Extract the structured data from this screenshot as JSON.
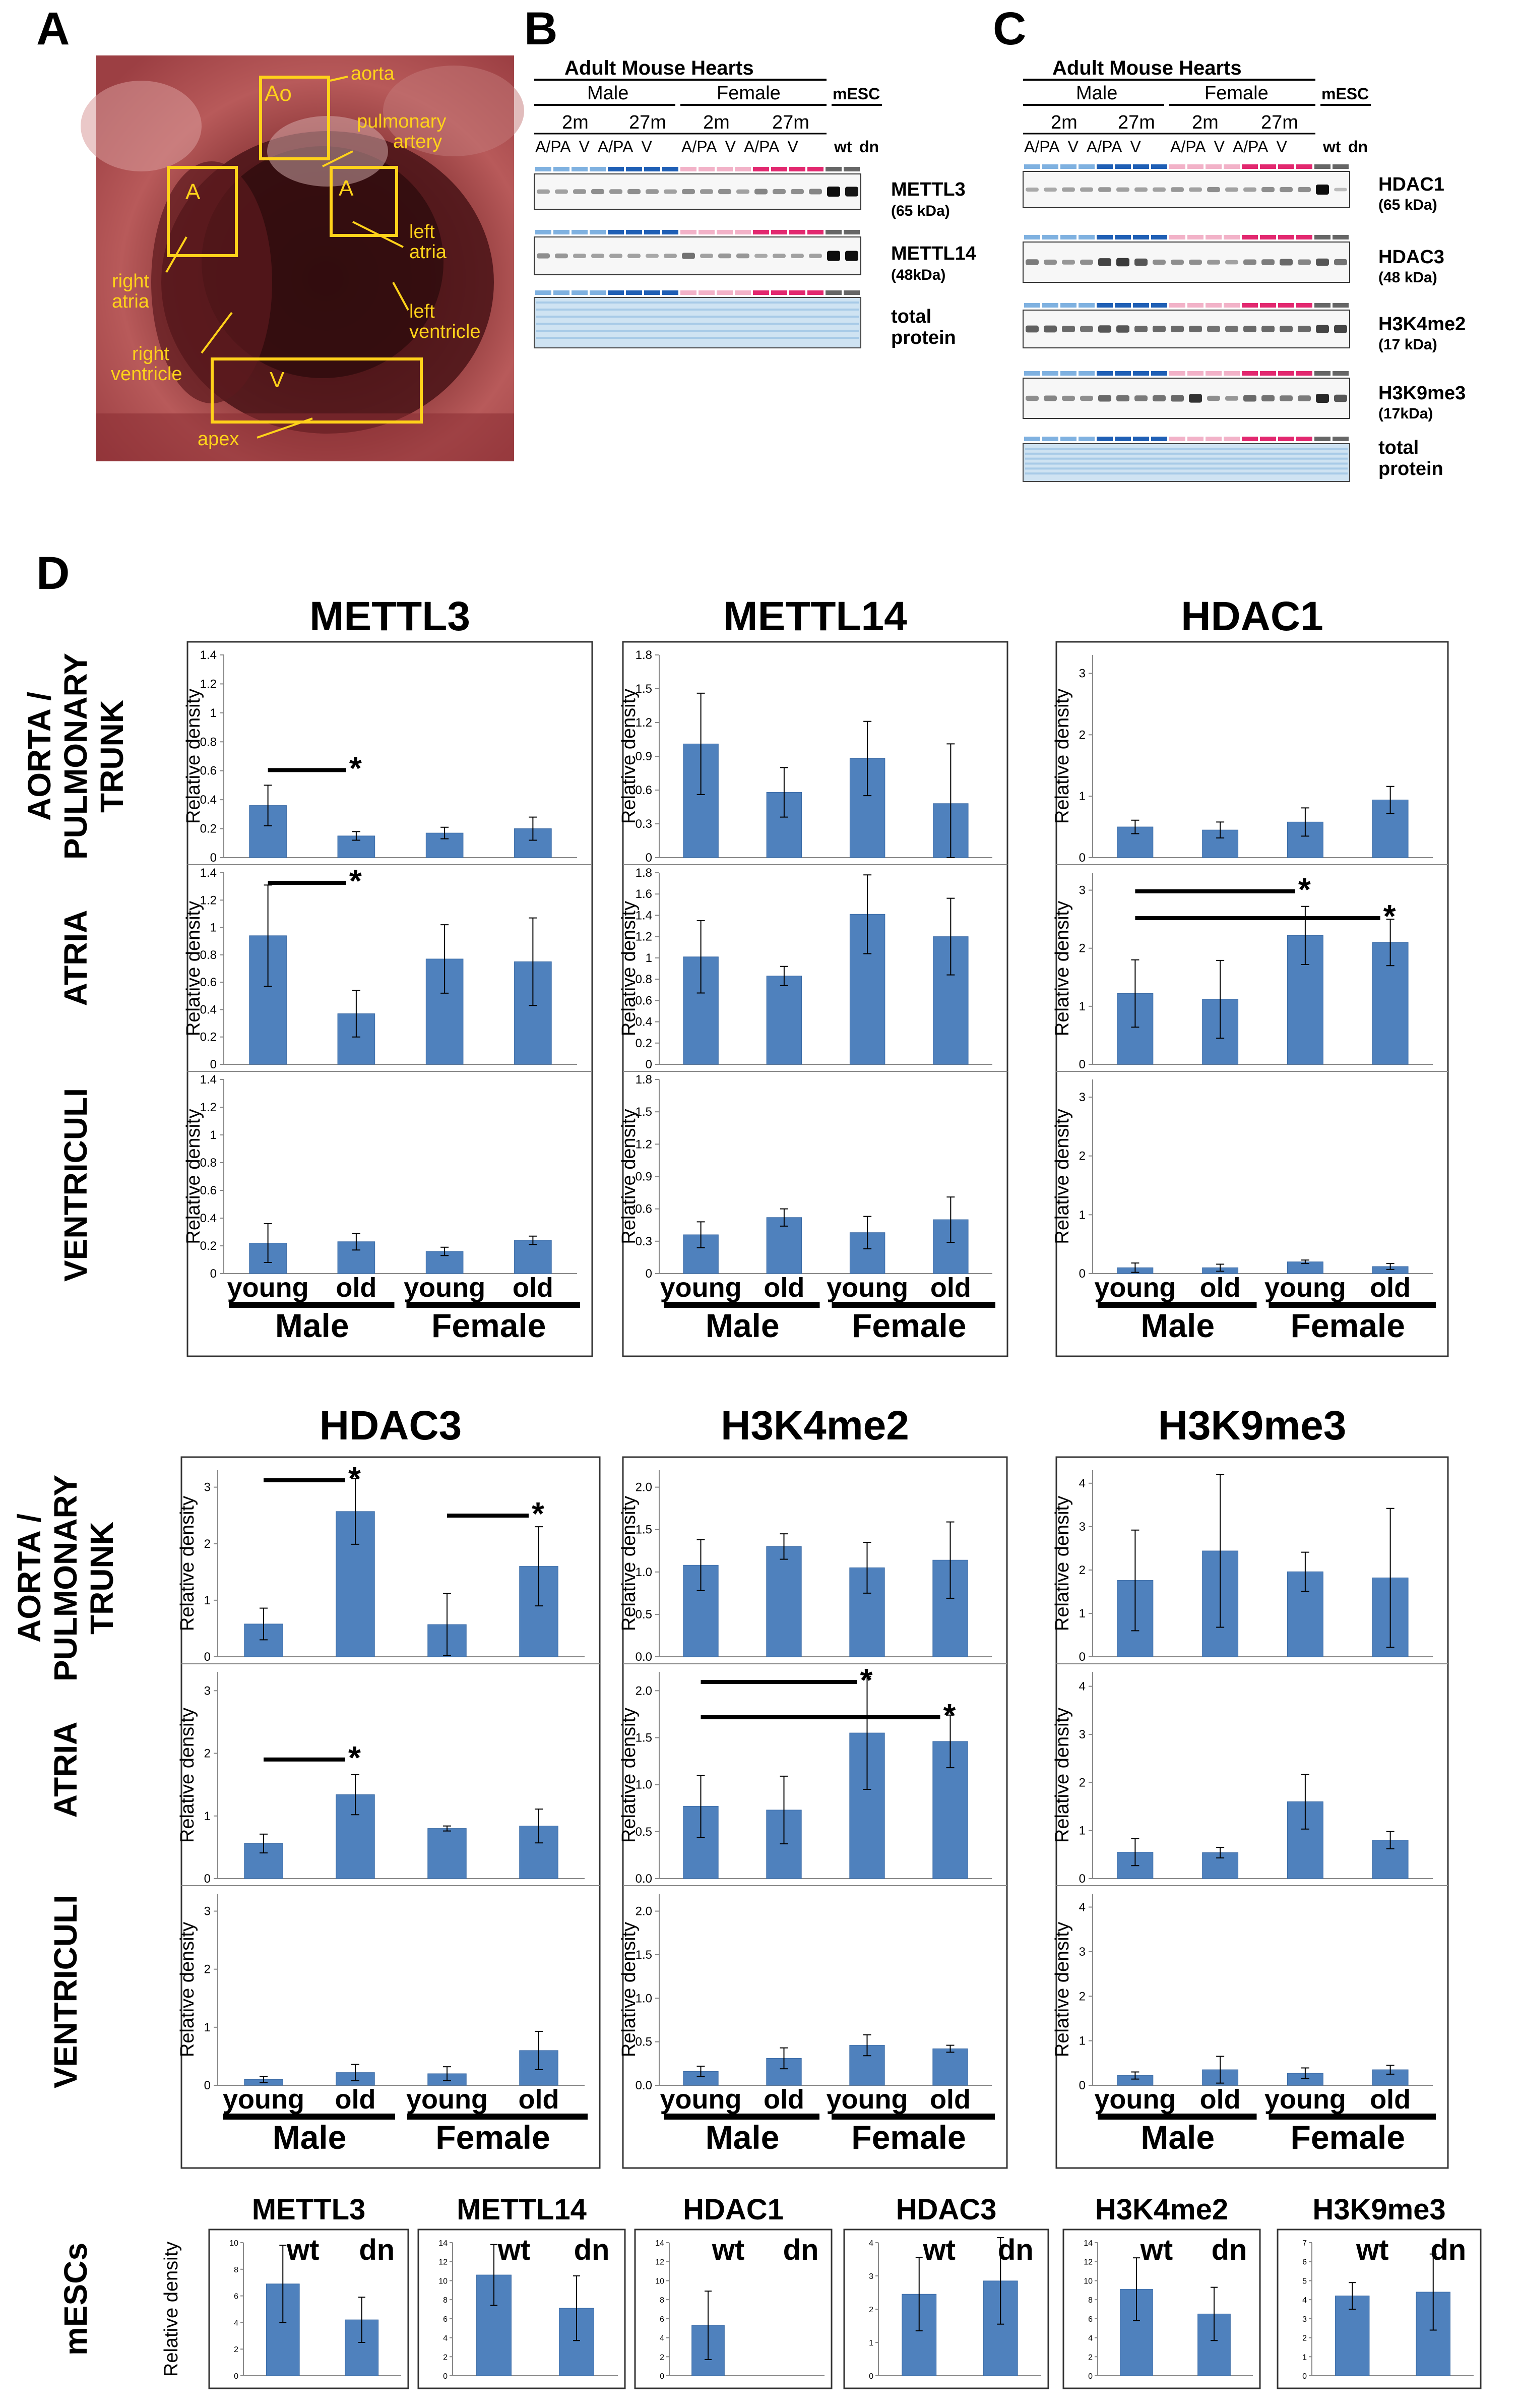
{
  "panel_labels": {
    "a": "A",
    "b": "B",
    "c": "C",
    "d": "D"
  },
  "photo": {
    "labels": {
      "ao_box": "Ao",
      "a_left_box": "A",
      "a_right_box": "A",
      "v_box": "V",
      "aorta": "aorta",
      "pulmonary_1": "pulmonary",
      "pulmonary_2": "artery",
      "right_atria_1": "right",
      "right_atria_2": "atria",
      "left_atria_1": "left",
      "left_atria_2": "atria",
      "left_ventricle_1": "left",
      "left_ventricle_2": "ventricle",
      "right_ventricle_1": "right",
      "right_ventricle_2": "ventricle",
      "apex": "apex"
    }
  },
  "blot_b": {
    "title": "Adult Mouse Hearts",
    "male": "Male",
    "female": "Female",
    "mesc": "mESC",
    "ages": [
      "2m",
      "27m",
      "2m",
      "27m"
    ],
    "lanes_male": "A/PA  V  A/PA  V",
    "lanes_female": "A/PA  V  A/PA  V",
    "wt": "wt",
    "dn": "dn",
    "bands": [
      {
        "name": "METTL3",
        "kda": "(65 kDa)"
      },
      {
        "name": "METTL14",
        "kda": "(48kDa)"
      },
      {
        "name": "total",
        "kda": "protein"
      }
    ]
  },
  "blot_c": {
    "title": "Adult Mouse Hearts",
    "male": "Male",
    "female": "Female",
    "mesc": "mESC",
    "ages": [
      "2m",
      "27m",
      "2m",
      "27m"
    ],
    "lanes_male": "A/PA  V  A/PA  V",
    "lanes_female": "A/PA  V  A/PA  V",
    "wt": "wt",
    "dn": "dn",
    "bands": [
      {
        "name": "HDAC1",
        "kda": "(65 kDa)"
      },
      {
        "name": "HDAC3",
        "kda": "(48 kDa)"
      },
      {
        "name": "H3K4me2",
        "kda": "(17 kDa)"
      },
      {
        "name": "H3K9me3",
        "kda": "(17kDa)"
      },
      {
        "name": "total",
        "kda": "protein"
      }
    ]
  },
  "row_labels": {
    "aorta_1": "AORTA /",
    "aorta_2": "PULMONARY",
    "aorta_3": "TRUNK",
    "atria": "ATRIA",
    "ventriculi": "VENTRICULI",
    "mescs": "mESCs"
  },
  "common": {
    "ylabel": "Relative density",
    "young": "young",
    "old": "old",
    "male": "Male",
    "female": "Female",
    "star": "*",
    "wt": "wt",
    "dn": "dn"
  },
  "colors": {
    "bar": "#4f81bd",
    "bar_edge": "#3a6aa5",
    "photo_box": "#ffd21a"
  },
  "chart_data": [
    {
      "type": "bar",
      "title": "METTL3",
      "categories": [
        "young Male",
        "old Male",
        "young Female",
        "old Female"
      ],
      "panels": [
        {
          "region": "AORTA / PULMONARY TRUNK",
          "ylim": [
            0,
            1.4
          ],
          "yticks": [
            0,
            0.2,
            0.4,
            0.6,
            0.8,
            1,
            1.2,
            1.4
          ],
          "ytick_labels": [
            "0",
            "0.2",
            "0.4",
            "0.6",
            "0.8",
            "1",
            "1.2",
            "1.4"
          ],
          "values": [
            0.36,
            0.15,
            0.17,
            0.2
          ],
          "errors": [
            0.14,
            0.03,
            0.04,
            0.08
          ],
          "significance": [
            [
              0,
              1
            ]
          ]
        },
        {
          "region": "ATRIA",
          "ylim": [
            0,
            1.4
          ],
          "yticks": [
            0,
            0.2,
            0.4,
            0.6,
            0.8,
            1,
            1.2,
            1.4
          ],
          "ytick_labels": [
            "0",
            "0.2",
            "0.4",
            "0.6",
            "0.8",
            "1",
            "1.2",
            "1.4"
          ],
          "values": [
            0.94,
            0.37,
            0.77,
            0.75
          ],
          "errors": [
            0.37,
            0.17,
            0.25,
            0.32
          ],
          "significance": [
            [
              0,
              1
            ]
          ]
        },
        {
          "region": "VENTRICULI",
          "ylim": [
            0,
            1.4
          ],
          "yticks": [
            0,
            0.2,
            0.4,
            0.6,
            0.8,
            1,
            1.2,
            1.4
          ],
          "ytick_labels": [
            "0",
            "0.2",
            "0.4",
            "0.6",
            "0.8",
            "1",
            "1.2",
            "1.4"
          ],
          "values": [
            0.22,
            0.23,
            0.16,
            0.24
          ],
          "errors": [
            0.14,
            0.06,
            0.03,
            0.03
          ],
          "significance": []
        }
      ]
    },
    {
      "type": "bar",
      "title": "METTL14",
      "categories": [
        "young Male",
        "old Male",
        "young Female",
        "old Female"
      ],
      "panels": [
        {
          "region": "AORTA / PULMONARY TRUNK",
          "ylim": [
            0,
            1.8
          ],
          "yticks": [
            0,
            0.3,
            0.6,
            0.9,
            1.2,
            1.5,
            1.8
          ],
          "ytick_labels": [
            "0",
            "0.3",
            "0.6",
            "0.9",
            "1.2",
            "1.5",
            "1.8"
          ],
          "values": [
            1.01,
            0.58,
            0.88,
            0.48
          ],
          "errors": [
            0.45,
            0.22,
            0.33,
            0.53
          ],
          "significance": []
        },
        {
          "region": "ATRIA",
          "ylim": [
            0,
            1.8
          ],
          "yticks": [
            0,
            0.2,
            0.4,
            0.6,
            0.8,
            1,
            1.2,
            1.4,
            1.6,
            1.8
          ],
          "ytick_labels": [
            "0",
            "0.2",
            "0.4",
            "0.6",
            "0.8",
            "1",
            "1.2",
            "1.4",
            "1.6",
            "1.8"
          ],
          "values": [
            1.01,
            0.83,
            1.41,
            1.2
          ],
          "errors": [
            0.34,
            0.09,
            0.37,
            0.36
          ],
          "significance": []
        },
        {
          "region": "VENTRICULI",
          "ylim": [
            0,
            1.8
          ],
          "yticks": [
            0,
            0.3,
            0.6,
            0.9,
            1.2,
            1.5,
            1.8
          ],
          "ytick_labels": [
            "0",
            "0.3",
            "0.6",
            "0.9",
            "1.2",
            "1.5",
            "1.8"
          ],
          "values": [
            0.36,
            0.52,
            0.38,
            0.5
          ],
          "errors": [
            0.12,
            0.08,
            0.15,
            0.21
          ],
          "significance": []
        }
      ]
    },
    {
      "type": "bar",
      "title": "HDAC1",
      "categories": [
        "young Male",
        "old Male",
        "young Female",
        "old Female"
      ],
      "panels": [
        {
          "region": "AORTA / PULMONARY TRUNK",
          "ylim": [
            0,
            3.3
          ],
          "yticks": [
            0,
            1,
            2,
            3
          ],
          "ytick_labels": [
            "0",
            "1",
            "2",
            "3"
          ],
          "values": [
            0.5,
            0.45,
            0.58,
            0.94
          ],
          "errors": [
            0.11,
            0.13,
            0.23,
            0.22
          ],
          "significance": []
        },
        {
          "region": "ATRIA",
          "ylim": [
            0,
            3.3
          ],
          "yticks": [
            0,
            1,
            2,
            3
          ],
          "ytick_labels": [
            "0",
            "1",
            "2",
            "3"
          ],
          "values": [
            1.22,
            1.12,
            2.22,
            2.1
          ],
          "errors": [
            0.58,
            0.67,
            0.5,
            0.4
          ],
          "significance": [
            [
              0,
              2
            ],
            [
              0,
              3
            ]
          ]
        },
        {
          "region": "VENTRICULI",
          "ylim": [
            0,
            3.3
          ],
          "yticks": [
            0,
            1,
            2,
            3
          ],
          "ytick_labels": [
            "0",
            "1",
            "2",
            "3"
          ],
          "values": [
            0.1,
            0.1,
            0.2,
            0.12
          ],
          "errors": [
            0.08,
            0.06,
            0.03,
            0.05
          ],
          "significance": []
        }
      ]
    },
    {
      "type": "bar",
      "title": "HDAC3",
      "categories": [
        "young Male",
        "old Male",
        "young Female",
        "old Female"
      ],
      "panels": [
        {
          "region": "AORTA / PULMONARY TRUNK",
          "ylim": [
            0,
            3.3
          ],
          "yticks": [
            0,
            1,
            2,
            3
          ],
          "ytick_labels": [
            "0",
            "1",
            "2",
            "3"
          ],
          "values": [
            0.58,
            2.57,
            0.57,
            1.6
          ],
          "errors": [
            0.28,
            0.58,
            0.55,
            0.7
          ],
          "significance": [
            [
              0,
              1
            ],
            [
              2,
              3
            ]
          ]
        },
        {
          "region": "ATRIA",
          "ylim": [
            0,
            3.3
          ],
          "yticks": [
            0,
            1,
            2,
            3
          ],
          "ytick_labels": [
            "0",
            "1",
            "2",
            "3"
          ],
          "values": [
            0.56,
            1.34,
            0.8,
            0.84
          ],
          "errors": [
            0.15,
            0.32,
            0.04,
            0.27
          ],
          "significance": [
            [
              0,
              1
            ]
          ]
        },
        {
          "region": "VENTRICULI",
          "ylim": [
            0,
            3.3
          ],
          "yticks": [
            0,
            1,
            2,
            3
          ],
          "ytick_labels": [
            "0",
            "1",
            "2",
            "3"
          ],
          "values": [
            0.1,
            0.22,
            0.2,
            0.6
          ],
          "errors": [
            0.05,
            0.14,
            0.12,
            0.33
          ],
          "significance": []
        }
      ]
    },
    {
      "type": "bar",
      "title": "H3K4me2",
      "categories": [
        "young Male",
        "old Male",
        "young Female",
        "old Female"
      ],
      "panels": [
        {
          "region": "AORTA / PULMONARY TRUNK",
          "ylim": [
            0,
            2.2
          ],
          "yticks": [
            0,
            0.5,
            1,
            1.5,
            2
          ],
          "ytick_labels": [
            "0.0",
            "0.5",
            "1.0",
            "1.5",
            "2.0"
          ],
          "values": [
            1.08,
            1.3,
            1.05,
            1.14
          ],
          "errors": [
            0.3,
            0.15,
            0.3,
            0.45
          ],
          "significance": []
        },
        {
          "region": "ATRIA",
          "ylim": [
            0,
            2.2
          ],
          "yticks": [
            0,
            0.5,
            1,
            1.5,
            2
          ],
          "ytick_labels": [
            "0.0",
            "0.5",
            "1.0",
            "1.5",
            "2.0"
          ],
          "values": [
            0.77,
            0.73,
            1.55,
            1.46
          ],
          "errors": [
            0.33,
            0.36,
            0.6,
            0.28
          ],
          "significance": [
            [
              0,
              2
            ],
            [
              0,
              3
            ]
          ]
        },
        {
          "region": "VENTRICULI",
          "ylim": [
            0,
            2.2
          ],
          "yticks": [
            0,
            0.5,
            1,
            1.5,
            2
          ],
          "ytick_labels": [
            "0.0",
            "0.5",
            "1.0",
            "1.5",
            "2.0"
          ],
          "values": [
            0.16,
            0.31,
            0.46,
            0.42
          ],
          "errors": [
            0.06,
            0.12,
            0.12,
            0.04
          ],
          "significance": []
        }
      ]
    },
    {
      "type": "bar",
      "title": "H3K9me3",
      "categories": [
        "young Male",
        "old Male",
        "young Female",
        "old Female"
      ],
      "panels": [
        {
          "region": "AORTA / PULMONARY TRUNK",
          "ylim": [
            0,
            4.3
          ],
          "yticks": [
            0,
            1,
            2,
            3,
            4
          ],
          "ytick_labels": [
            "0",
            "1",
            "2",
            "3",
            "4"
          ],
          "values": [
            1.76,
            2.44,
            1.96,
            1.82
          ],
          "errors": [
            1.16,
            1.76,
            0.45,
            1.6
          ],
          "significance": []
        },
        {
          "region": "ATRIA",
          "ylim": [
            0,
            4.3
          ],
          "yticks": [
            0,
            1,
            2,
            3,
            4
          ],
          "ytick_labels": [
            "0",
            "1",
            "2",
            "3",
            "4"
          ],
          "values": [
            0.55,
            0.54,
            1.6,
            0.8
          ],
          "errors": [
            0.28,
            0.11,
            0.57,
            0.18
          ],
          "significance": []
        },
        {
          "region": "VENTRICULI",
          "ylim": [
            0,
            4.3
          ],
          "yticks": [
            0,
            1,
            2,
            3,
            4
          ],
          "ytick_labels": [
            "0",
            "1",
            "2",
            "3",
            "4"
          ],
          "values": [
            0.22,
            0.35,
            0.27,
            0.35
          ],
          "errors": [
            0.08,
            0.3,
            0.12,
            0.1
          ],
          "significance": []
        }
      ]
    },
    {
      "type": "bar",
      "title": "METTL3",
      "region": "mESCs",
      "categories": [
        "wt",
        "dn"
      ],
      "ylim": [
        0,
        10
      ],
      "yticks": [
        0,
        2,
        4,
        6,
        8,
        10
      ],
      "ytick_labels": [
        "0",
        "2",
        "4",
        "6",
        "8",
        "10"
      ],
      "values": [
        6.9,
        4.2
      ],
      "errors": [
        2.9,
        1.7
      ]
    },
    {
      "type": "bar",
      "title": "METTL14",
      "region": "mESCs",
      "categories": [
        "wt",
        "dn"
      ],
      "ylim": [
        0,
        14
      ],
      "yticks": [
        0,
        2,
        4,
        6,
        8,
        10,
        12,
        14
      ],
      "ytick_labels": [
        "0",
        "2",
        "4",
        "6",
        "8",
        "10",
        "12",
        "14"
      ],
      "values": [
        10.6,
        7.1
      ],
      "errors": [
        3.2,
        3.4
      ]
    },
    {
      "type": "bar",
      "title": "HDAC1",
      "region": "mESCs",
      "categories": [
        "wt",
        "dn"
      ],
      "ylim": [
        0,
        14
      ],
      "yticks": [
        0,
        2,
        4,
        6,
        8,
        10,
        12,
        14
      ],
      "ytick_labels": [
        "0",
        "2",
        "4",
        "6",
        "8",
        "10",
        "12",
        "14"
      ],
      "values": [
        5.3,
        0
      ],
      "errors": [
        3.6,
        0
      ]
    },
    {
      "type": "bar",
      "title": "HDAC3",
      "region": "mESCs",
      "categories": [
        "wt",
        "dn"
      ],
      "ylim": [
        0,
        4
      ],
      "yticks": [
        0,
        1,
        2,
        3,
        4
      ],
      "ytick_labels": [
        "0",
        "1",
        "2",
        "3",
        "4"
      ],
      "values": [
        2.45,
        2.85
      ],
      "errors": [
        1.1,
        1.3
      ]
    },
    {
      "type": "bar",
      "title": "H3K4me2",
      "region": "mESCs",
      "categories": [
        "wt",
        "dn"
      ],
      "ylim": [
        0,
        14
      ],
      "yticks": [
        0,
        2,
        4,
        6,
        8,
        10,
        12,
        14
      ],
      "ytick_labels": [
        "0",
        "2",
        "4",
        "6",
        "8",
        "10",
        "12",
        "14"
      ],
      "values": [
        9.1,
        6.5
      ],
      "errors": [
        3.3,
        2.8
      ]
    },
    {
      "type": "bar",
      "title": "H3K9me3",
      "region": "mESCs",
      "categories": [
        "wt",
        "dn"
      ],
      "ylim": [
        0,
        7
      ],
      "yticks": [
        0,
        1,
        2,
        3,
        4,
        5,
        6,
        7
      ],
      "ytick_labels": [
        "0",
        "1",
        "2",
        "3",
        "4",
        "5",
        "6",
        "7"
      ],
      "values": [
        4.2,
        4.4
      ],
      "errors": [
        0.7,
        2
      ]
    }
  ]
}
